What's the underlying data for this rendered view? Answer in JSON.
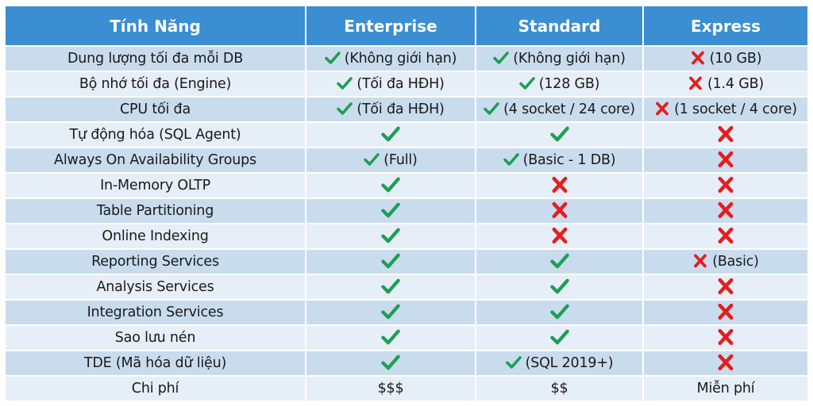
{
  "colors": {
    "header_bg": "#3b8ed1",
    "header_text": "#ffffff",
    "row_odd": "#c9dcee",
    "row_even": "#e6eef7",
    "check": "#1e9e54",
    "cross": "#e41e1e"
  },
  "table": {
    "headers": [
      "Tính Năng",
      "Enterprise",
      "Standard",
      "Express"
    ],
    "rows": [
      {
        "feature": "Dung lượng tối đa mỗi DB",
        "enterprise": {
          "icon": "check-icon",
          "note": "(Không giới hạn)"
        },
        "standard": {
          "icon": "check-icon",
          "note": "(Không giới hạn)"
        },
        "express": {
          "icon": "cross-icon",
          "note": "(10 GB)"
        }
      },
      {
        "feature": "Bộ nhớ tối đa (Engine)",
        "enterprise": {
          "icon": "check-icon",
          "note": "(Tối đa HĐH)"
        },
        "standard": {
          "icon": "check-icon",
          "note": "(128 GB)"
        },
        "express": {
          "icon": "cross-icon",
          "note": "(1.4 GB)"
        }
      },
      {
        "feature": "CPU tối đa",
        "enterprise": {
          "icon": "check-icon",
          "note": "(Tối đa HĐH)"
        },
        "standard": {
          "icon": "check-icon",
          "note": "(4 socket / 24 core)"
        },
        "express": {
          "icon": "cross-icon",
          "note": "(1 socket / 4 core)"
        }
      },
      {
        "feature": "Tự động hóa (SQL Agent)",
        "enterprise": {
          "icon": "check-icon",
          "note": ""
        },
        "standard": {
          "icon": "check-icon",
          "note": ""
        },
        "express": {
          "icon": "cross-icon",
          "note": ""
        }
      },
      {
        "feature": "Always On Availability Groups",
        "enterprise": {
          "icon": "check-icon",
          "note": "(Full)"
        },
        "standard": {
          "icon": "check-icon",
          "note": "(Basic - 1 DB)"
        },
        "express": {
          "icon": "cross-icon",
          "note": ""
        }
      },
      {
        "feature": "In-Memory OLTP",
        "enterprise": {
          "icon": "check-icon",
          "note": ""
        },
        "standard": {
          "icon": "cross-icon",
          "note": ""
        },
        "express": {
          "icon": "cross-icon",
          "note": ""
        }
      },
      {
        "feature": "Table Partitioning",
        "enterprise": {
          "icon": "check-icon",
          "note": ""
        },
        "standard": {
          "icon": "cross-icon",
          "note": ""
        },
        "express": {
          "icon": "cross-icon",
          "note": ""
        }
      },
      {
        "feature": "Online Indexing",
        "enterprise": {
          "icon": "check-icon",
          "note": ""
        },
        "standard": {
          "icon": "cross-icon",
          "note": ""
        },
        "express": {
          "icon": "cross-icon",
          "note": ""
        }
      },
      {
        "feature": "Reporting Services",
        "enterprise": {
          "icon": "check-icon",
          "note": ""
        },
        "standard": {
          "icon": "check-icon",
          "note": ""
        },
        "express": {
          "icon": "cross-icon",
          "note": "(Basic)"
        }
      },
      {
        "feature": "Analysis Services",
        "enterprise": {
          "icon": "check-icon",
          "note": ""
        },
        "standard": {
          "icon": "check-icon",
          "note": ""
        },
        "express": {
          "icon": "cross-icon",
          "note": ""
        }
      },
      {
        "feature": "Integration Services",
        "enterprise": {
          "icon": "check-icon",
          "note": ""
        },
        "standard": {
          "icon": "check-icon",
          "note": ""
        },
        "express": {
          "icon": "cross-icon",
          "note": ""
        }
      },
      {
        "feature": "Sao lưu nén",
        "enterprise": {
          "icon": "check-icon",
          "note": ""
        },
        "standard": {
          "icon": "check-icon",
          "note": ""
        },
        "express": {
          "icon": "cross-icon",
          "note": ""
        }
      },
      {
        "feature": "TDE (Mã hóa dữ liệu)",
        "enterprise": {
          "icon": "check-icon",
          "note": ""
        },
        "standard": {
          "icon": "check-icon",
          "note": "(SQL 2019+)"
        },
        "express": {
          "icon": "cross-icon",
          "note": ""
        }
      },
      {
        "feature": "Chi phí",
        "enterprise": {
          "icon": "",
          "note": "$$$"
        },
        "standard": {
          "icon": "",
          "note": "$$"
        },
        "express": {
          "icon": "",
          "note": "Miễn phí"
        }
      }
    ]
  }
}
